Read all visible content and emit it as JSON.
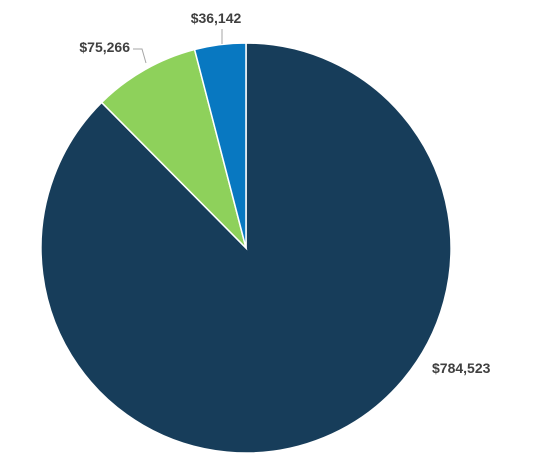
{
  "chart_data": {
    "type": "pie",
    "slices": [
      {
        "label": "$784,523",
        "value": 784523,
        "color": "#173d5a"
      },
      {
        "label": "$75,266",
        "value": 75266,
        "color": "#8ed15b"
      },
      {
        "label": "$36,142",
        "value": 36142,
        "color": "#0878c1"
      }
    ],
    "start": "12 o'clock",
    "direction": "clockwise",
    "legend": "none"
  }
}
